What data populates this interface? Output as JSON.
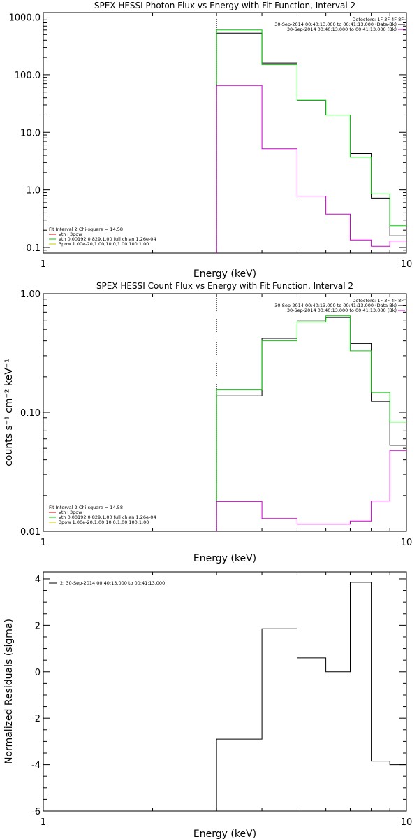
{
  "chart_data": [
    {
      "type": "line",
      "title": "SPEX HESSI Photon Flux vs Energy with Fit Function, Interval 2",
      "xlabel": "Energy (keV)",
      "ylabel": "",
      "xscale": "log",
      "yscale": "log",
      "xlim": [
        1,
        10
      ],
      "ylim": [
        0.08,
        1200
      ],
      "x_tick_labels": [
        "1",
        "10"
      ],
      "y_tick_labels": [
        "0.1",
        "1.0",
        "10.0",
        "100.0",
        "1000.0"
      ],
      "y_ticks": [
        0.1,
        1,
        10,
        100,
        1000
      ],
      "marker_x": 3.0,
      "edges": [
        3.0,
        4.0,
        5.0,
        6.0,
        7.0,
        8.0,
        9.0,
        10.0
      ],
      "series": [
        {
          "color": "#000000",
          "values": [
            530,
            160,
            36,
            20,
            4.3,
            0.72,
            0.16
          ]
        },
        {
          "color": "#00cc00",
          "values": [
            600,
            150,
            36,
            20,
            3.7,
            0.85,
            0.24
          ]
        },
        {
          "color": "#cc00cc",
          "values": [
            65,
            5.2,
            0.78,
            0.38,
            0.135,
            0.105,
            0.13
          ]
        }
      ],
      "legend_top": {
        "title": "Detectors: 1F 3F 4F 8F",
        "entries": [
          {
            "text": "30-Sep-2014 00:40:13.000 to 00:41:13.000 (Data-Bk)",
            "color": "#000000"
          },
          {
            "text": "30-Sep-2014 00:40:13.000 to 00:41:13.000 (Bk)",
            "color": "#cc00cc"
          }
        ]
      },
      "legend_bottom": {
        "title": "Fit Interval  2   Chi-square = 14.58",
        "entries": [
          {
            "text": "vth+3pow",
            "color": "#cc0000"
          },
          {
            "text": "vth 0.00192,0.829,1.00  full chian 1.26e-04",
            "color": "#00cc00"
          },
          {
            "text": "3pow 1.00e-20,1.00,10.0,1.00,100,1.00",
            "color": "#cccc00"
          }
        ]
      }
    },
    {
      "type": "line",
      "title": "SPEX HESSI Count Flux vs Energy with Fit Function, Interval 2",
      "xlabel": "Energy (keV)",
      "ylabel": "counts s⁻¹ cm⁻² keV⁻¹",
      "xscale": "log",
      "yscale": "log",
      "xlim": [
        1,
        10
      ],
      "ylim": [
        0.01,
        1.0
      ],
      "x_tick_labels": [
        "1",
        "10"
      ],
      "y_tick_labels": [
        "0.01",
        "0.10",
        "1.00"
      ],
      "y_ticks": [
        0.01,
        0.1,
        1.0
      ],
      "marker_x": 3.0,
      "edges": [
        3.0,
        4.0,
        5.0,
        6.0,
        7.0,
        8.0,
        9.0,
        10.0
      ],
      "series": [
        {
          "color": "#000000",
          "values": [
            0.138,
            0.42,
            0.6,
            0.63,
            0.38,
            0.124,
            0.053
          ]
        },
        {
          "color": "#00cc00",
          "values": [
            0.155,
            0.4,
            0.58,
            0.65,
            0.33,
            0.148,
            0.083
          ]
        },
        {
          "color": "#cc00cc",
          "values": [
            0.0178,
            0.0128,
            0.0115,
            0.0115,
            0.0122,
            0.018,
            0.048
          ]
        }
      ],
      "legend_top": {
        "title": "Detectors: 1F 3F 4F 8F",
        "entries": [
          {
            "text": "30-Sep-2014 00:40:13.000 to 00:41:13.000 (Data-Bk)",
            "color": "#000000"
          },
          {
            "text": "30-Sep-2014 00:40:13.000 to 00:41:13.000 (Bk)",
            "color": "#cc00cc"
          }
        ]
      },
      "legend_bottom": {
        "title": "Fit Interval  2   Chi-square = 14.58",
        "entries": [
          {
            "text": "vth+3pow",
            "color": "#cc0000"
          },
          {
            "text": "vth 0.00192,0.829,1.00  full chian 1.26e-04",
            "color": "#00cc00"
          },
          {
            "text": "3pow 1.00e-20,1.00,10.0,1.00,100,1.00",
            "color": "#cccc00"
          }
        ]
      }
    },
    {
      "type": "line",
      "title": "",
      "xlabel": "Energy (keV)",
      "ylabel": "Normalized Residuals (sigma)",
      "xscale": "log",
      "yscale": "linear",
      "xlim": [
        1,
        10
      ],
      "ylim": [
        -6,
        4.3
      ],
      "x_tick_labels": [
        "1",
        "10"
      ],
      "y_tick_labels": [
        "-6",
        "-4",
        "-2",
        "0",
        "2",
        "4"
      ],
      "y_ticks": [
        -6,
        -4,
        -2,
        0,
        2,
        4
      ],
      "edges": [
        3.0,
        4.0,
        5.0,
        6.0,
        7.0,
        8.0,
        9.0,
        10.0
      ],
      "series": [
        {
          "color": "#000000",
          "values": [
            -2.9,
            1.85,
            0.6,
            0.0,
            3.85,
            -3.85,
            -4.0
          ]
        }
      ],
      "legend_top": {
        "title": "",
        "entries": [
          {
            "text": "2: 30-Sep-2014 00:40:13.000 to 00:41:13.000",
            "color": "#000000"
          }
        ]
      }
    }
  ]
}
